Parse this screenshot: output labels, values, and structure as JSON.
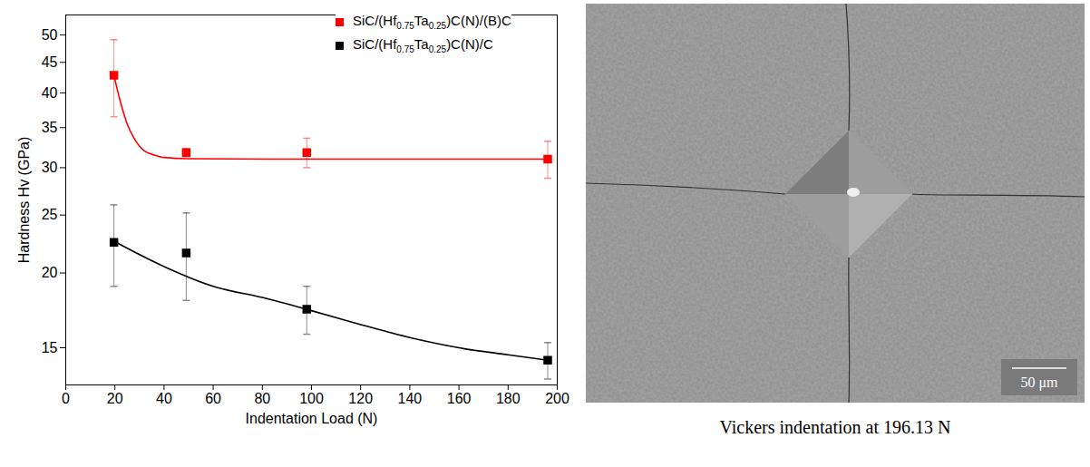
{
  "chart_data": {
    "type": "scatter",
    "x_label": "Indentation Load (N)",
    "y_label": "Hardness Hv (GPa)",
    "xlim": [
      0,
      200
    ],
    "xticks": [
      0,
      20,
      40,
      60,
      80,
      100,
      120,
      140,
      160,
      180,
      200
    ],
    "ylim": [
      13,
      54
    ],
    "yticks": [
      15,
      20,
      25,
      30,
      35,
      40,
      45,
      50
    ],
    "log": "y",
    "legend": "top-right",
    "marker": "square",
    "series": [
      {
        "name": "SiC/(Hf0.75Ta0.25)C(N)/(B)C",
        "color": "#ff0000",
        "x": [
          19.61,
          49.03,
          98.07,
          196.13
        ],
        "values": [
          42.8,
          31.8,
          31.8,
          31.0
        ],
        "errors": [
          6.3,
          0.5,
          1.8,
          2.2
        ],
        "fit": {
          "x": [
            19.61,
            22,
            25,
            28,
            32,
            36,
            40,
            50,
            100,
            196.13
          ],
          "values": [
            42.8,
            39.0,
            35.5,
            33.5,
            32.0,
            31.5,
            31.2,
            31.05,
            31.0,
            31.0
          ]
        }
      },
      {
        "name": "SiC/(Hf0.75Ta0.25)C(N)/C",
        "color": "#000000",
        "x": [
          19.61,
          49.03,
          98.07,
          196.13
        ],
        "values": [
          22.5,
          21.6,
          17.4,
          14.3
        ],
        "errors": [
          3.5,
          3.6,
          1.6,
          1.0
        ],
        "fit": {
          "x": [
            19.61,
            40,
            60,
            80,
            100,
            120,
            140,
            160,
            180,
            196.13
          ],
          "values": [
            22.6,
            20.5,
            19.0,
            18.2,
            17.3,
            16.4,
            15.6,
            15.0,
            14.6,
            14.3
          ]
        }
      }
    ]
  },
  "image": {
    "caption": "Vickers indentation at 196.13 N",
    "scale_bar": "50 μm"
  }
}
